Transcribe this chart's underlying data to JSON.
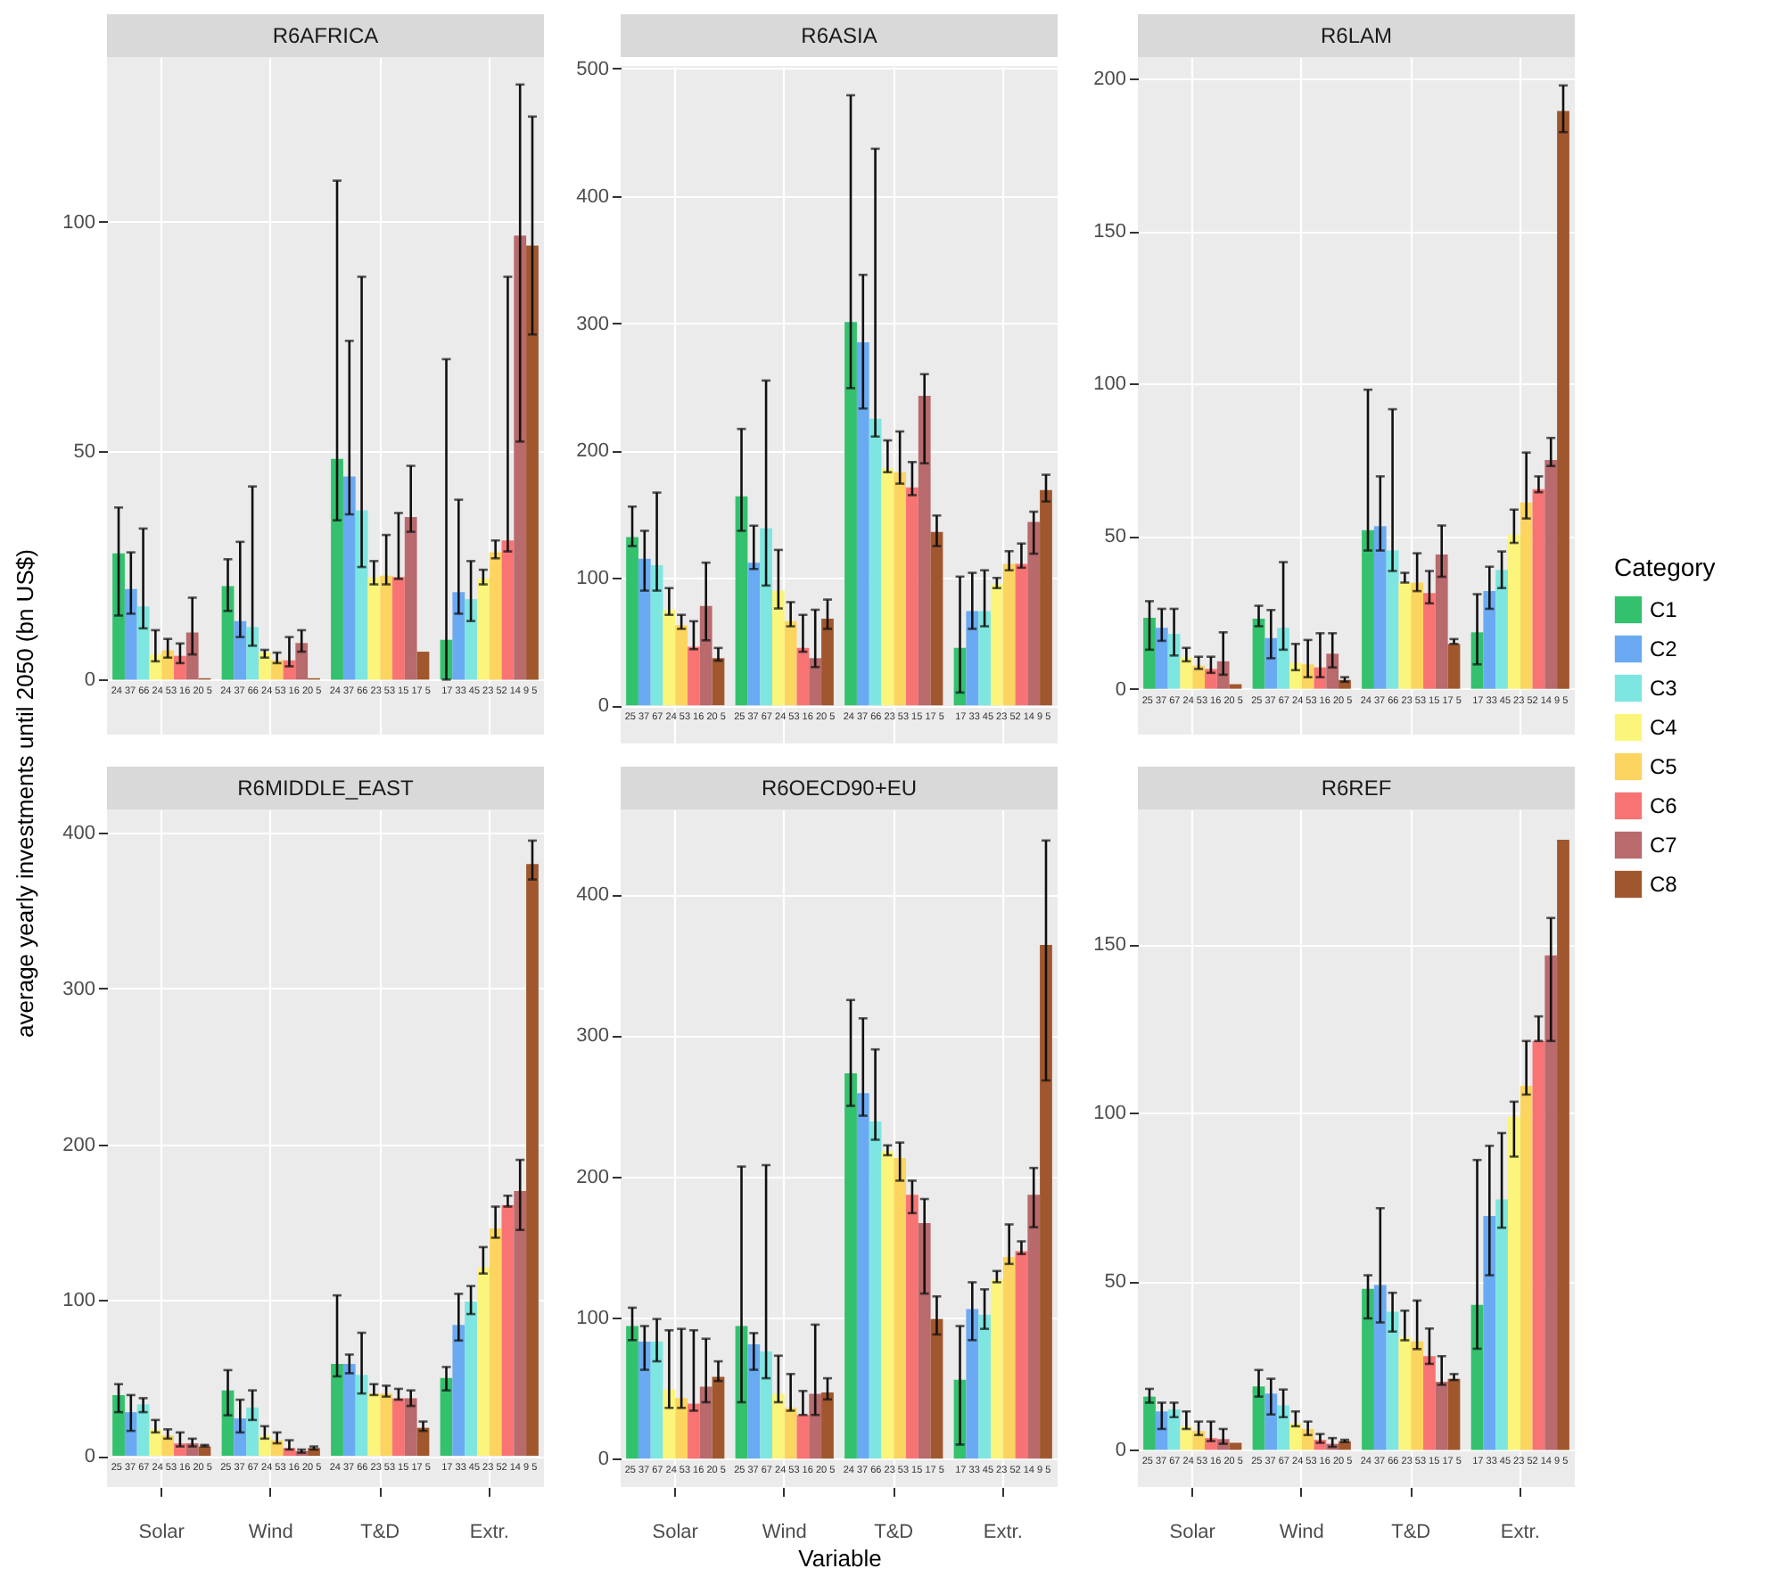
{
  "chart_data": [
    {
      "type": "bar",
      "title": "R6AFRICA",
      "categories": [
        "Solar",
        "Wind",
        "T&D",
        "Extr."
      ],
      "ylim": [
        -12,
        136
      ],
      "yticks": [
        0,
        50,
        100
      ],
      "grid": true,
      "tick_labels": "y",
      "annotations": [
        {
          "text": "24 37 66 24 53 16 20 5",
          "x": "Solar",
          "y": 0
        },
        {
          "text": "24 37 66 24 53 16 20 5",
          "x": "Wind",
          "y": 0
        },
        {
          "text": "24 37 66 23 53 15 17 5",
          "x": "T&D",
          "y": 0
        },
        {
          "text": "17 33 45 23 52 14 9 5",
          "x": "Extr.",
          "y": 0
        }
      ],
      "series": [
        {
          "color": "#33c16e",
          "values": [
            27.6,
            20.4,
            48.2,
            8.7
          ],
          "errors": [
            [
              14,
              37.6
            ],
            [
              15,
              26.3
            ],
            [
              34.8,
              109
            ],
            [
              0,
              70
            ]
          ]
        },
        {
          "color": "#6aaaf2",
          "values": [
            19.8,
            12.8,
            44.4,
            19.1
          ],
          "errors": [
            [
              14.4,
              27.8
            ],
            [
              9.3,
              30.1
            ],
            [
              36.1,
              74
            ],
            [
              14.4,
              39.3
            ]
          ]
        },
        {
          "color": "#7ee6e0",
          "values": [
            16,
            11.5,
            37,
            17.6
          ],
          "errors": [
            [
              11.2,
              33
            ],
            [
              7.4,
              42.2
            ],
            [
              24.6,
              88
            ],
            [
              12.8,
              25.9
            ]
          ]
        },
        {
          "color": "#fbf57c",
          "values": [
            5.5,
            5.9,
            22.3,
            22.1
          ],
          "errors": [
            [
              4,
              10.8
            ],
            [
              4.8,
              6.5
            ],
            [
              20.8,
              25.9
            ],
            [
              20.8,
              24
            ]
          ]
        },
        {
          "color": "#fbd55f",
          "values": [
            6.4,
            4.2,
            22.7,
            27.8
          ],
          "errors": [
            [
              4.8,
              8.9
            ],
            [
              3.6,
              5.9
            ],
            [
              20.8,
              31.6
            ],
            [
              26.5,
              30.4
            ]
          ]
        },
        {
          "color": "#f87474",
          "values": [
            5.2,
            4.2,
            22.4,
            30.4
          ],
          "errors": [
            [
              3.6,
              7.9
            ],
            [
              2.9,
              9.3
            ],
            [
              22,
              36.4
            ],
            [
              28,
              88
            ]
          ]
        },
        {
          "color": "#b86a6c",
          "values": [
            10.3,
            8,
            35.5,
            97
          ],
          "errors": [
            [
              5.5,
              17.9
            ],
            [
              6.1,
              10.8
            ],
            [
              32.3,
              46.7
            ],
            [
              52,
              130
            ]
          ]
        },
        {
          "color": "#a0572e",
          "values": [
            0.3,
            0.3,
            6.1,
            94.8
          ],
          "errors": [
            null,
            null,
            null,
            [
              75.4,
              123
            ]
          ]
        }
      ]
    },
    {
      "type": "bar",
      "title": "R6ASIA",
      "categories": [
        "Solar",
        "Wind",
        "T&D",
        "Extr."
      ],
      "ylim": [
        -30,
        502
      ],
      "yticks": [
        0,
        100,
        200,
        300,
        400,
        500
      ],
      "grid": true,
      "tick_labels": "y",
      "annotations": [
        {
          "text": "25 37 67 24 53 16 20 5",
          "x": "Solar",
          "y": 0
        },
        {
          "text": "25 37 67 24 53 16 20 5",
          "x": "Wind",
          "y": 0
        },
        {
          "text": "24 37 66 23 53 15 17 5",
          "x": "T&D",
          "y": 0
        },
        {
          "text": "17 33 45 23 52 14 9 5",
          "x": "Extr.",
          "y": 0
        }
      ],
      "series": [
        {
          "color": "#33c16e",
          "values": [
            132,
            164,
            301,
            45
          ],
          "errors": [
            [
              125,
              156
            ],
            [
              137,
              217
            ],
            [
              249,
              479
            ],
            [
              10,
              101
            ]
          ]
        },
        {
          "color": "#6aaaf2",
          "values": [
            115,
            112,
            285,
            74
          ],
          "errors": [
            [
              90,
              137
            ],
            [
              107,
              141
            ],
            [
              233,
              338
            ],
            [
              60,
              104
            ]
          ]
        },
        {
          "color": "#7ee6e0",
          "values": [
            110,
            139,
            225,
            74
          ],
          "errors": [
            [
              90,
              167
            ],
            [
              94,
              255
            ],
            [
              211,
              437
            ],
            [
              62,
              106
            ]
          ]
        },
        {
          "color": "#fbf57c",
          "values": [
            75,
            90,
            186,
            95
          ],
          "errors": [
            [
              71,
              92
            ],
            [
              76,
              122
            ],
            [
              183,
              208
            ],
            [
              92,
              100
            ]
          ]
        },
        {
          "color": "#fbd55f",
          "values": [
            63,
            66,
            183,
            111
          ],
          "errors": [
            [
              60,
              71
            ],
            [
              62,
              81
            ],
            [
              174,
              215
            ],
            [
              106,
              121
            ]
          ]
        },
        {
          "color": "#f87474",
          "values": [
            46,
            45,
            171,
            111
          ],
          "errors": [
            [
              44,
              66
            ],
            [
              42,
              71
            ],
            [
              165,
              191
            ],
            [
              108,
              127
            ]
          ]
        },
        {
          "color": "#b86a6c",
          "values": [
            78,
            37,
            243,
            144
          ],
          "errors": [
            [
              51,
              112
            ],
            [
              30,
              75
            ],
            [
              190,
              260
            ],
            [
              119,
              152
            ]
          ]
        },
        {
          "color": "#a0572e",
          "values": [
            37,
            68,
            136,
            169
          ],
          "errors": [
            [
              35,
              45
            ],
            [
              60,
              83
            ],
            [
              125,
              149
            ],
            [
              160,
              181
            ]
          ]
        }
      ]
    },
    {
      "type": "bar",
      "title": "R6LAM",
      "categories": [
        "Solar",
        "Wind",
        "T&D",
        "Extr."
      ],
      "ylim": [
        -15,
        207
      ],
      "yticks": [
        0,
        50,
        100,
        150,
        200
      ],
      "grid": true,
      "tick_labels": "y",
      "legend": "right",
      "legend_title": "Category",
      "annotations": [
        {
          "text": "25 37 67 24 53 16 20 5",
          "x": "Solar",
          "y": 0
        },
        {
          "text": "25 37 67 24 53 16 20 5",
          "x": "Wind",
          "y": 0
        },
        {
          "text": "24 37 66 23 53 15 17 5",
          "x": "T&D",
          "y": 0
        },
        {
          "text": "17 33 45 23 52 14 9 5",
          "x": "Extr.",
          "y": 0
        }
      ],
      "series": [
        {
          "name": "C1",
          "color": "#33c16e",
          "values": [
            23.3,
            23,
            52,
            18.5
          ],
          "errors": [
            [
              12.8,
              28.7
            ],
            [
              20.5,
              27.2
            ],
            [
              45.3,
              98
            ],
            [
              8,
              31
            ]
          ]
        },
        {
          "name": "C2",
          "color": "#6aaaf2",
          "values": [
            20,
            16.6,
            53.3,
            32
          ],
          "errors": [
            [
              15.7,
              26.2
            ],
            [
              10,
              25.8
            ],
            [
              45.3,
              69.6
            ],
            [
              26.2,
              40
            ]
          ]
        },
        {
          "name": "C3",
          "color": "#7ee6e0",
          "values": [
            18,
            20,
            45.3,
            39
          ],
          "errors": [
            [
              10.9,
              26.2
            ],
            [
              12.8,
              41.5
            ],
            [
              38.6,
              91.6
            ],
            [
              33,
              45
            ]
          ]
        },
        {
          "name": "C4",
          "color": "#fbf57c",
          "values": [
            10.3,
            8.6,
            34.8,
            50.5
          ],
          "errors": [
            [
              9,
              13.4
            ],
            [
              6.1,
              14.7
            ],
            [
              34.8,
              38
            ],
            [
              47.8,
              58.7
            ]
          ]
        },
        {
          "name": "C5",
          "color": "#fbd55f",
          "values": [
            7.6,
            8,
            34.8,
            61
          ],
          "errors": [
            [
              6.5,
              10.5
            ],
            [
              3.8,
              16
            ],
            [
              32,
              44.4
            ],
            [
              55.8,
              77.4
            ]
          ]
        },
        {
          "name": "C6",
          "color": "#f87474",
          "values": [
            6.5,
            7,
            31.4,
            65.4
          ],
          "errors": [
            [
              5.2,
              10.5
            ],
            [
              3.8,
              18.2
            ],
            [
              28,
              38.6
            ],
            [
              64.4,
              69.6
            ]
          ]
        },
        {
          "name": "C7",
          "color": "#b86a6c",
          "values": [
            9,
            11.5,
            44,
            75
          ],
          "errors": [
            [
              4.6,
              18.5
            ],
            [
              7,
              18.2
            ],
            [
              36.7,
              53.5
            ],
            [
              73,
              82.2
            ]
          ]
        },
        {
          "name": "C8",
          "color": "#a0572e",
          "values": [
            1.5,
            2.9,
            14.7,
            189.3
          ],
          "errors": [
            null,
            [
              2.3,
              3.8
            ],
            [
              14.7,
              16.3
            ],
            [
              182.4,
              197.7
            ]
          ]
        }
      ]
    },
    {
      "type": "bar",
      "title": "R6MIDDLE_EAST",
      "ylabel": "average yearly investments until 2050 (bn US$)",
      "categories": [
        "Solar",
        "Wind",
        "T&D",
        "Extr."
      ],
      "ylim": [
        -20,
        415
      ],
      "yticks": [
        0,
        100,
        200,
        300,
        400
      ],
      "grid": true,
      "annotations": [
        {
          "text": "25 37 67 24 53 16 20 5",
          "x": "Solar",
          "y": 0
        },
        {
          "text": "25 37 67 24 53 16 20 5",
          "x": "Wind",
          "y": 0
        },
        {
          "text": "24 37 66 23 53 15 17 5",
          "x": "T&D",
          "y": 0
        },
        {
          "text": "17 33 45 23 52 14 9 5",
          "x": "Extr.",
          "y": 0
        }
      ],
      "series": [
        {
          "color": "#33c16e",
          "values": [
            39,
            42,
            59,
            50
          ],
          "errors": [
            [
              28,
              46
            ],
            [
              26,
              55
            ],
            [
              51,
              103
            ],
            [
              42,
              57
            ]
          ]
        },
        {
          "color": "#6aaaf2",
          "values": [
            28,
            24,
            59,
            84
          ],
          "errors": [
            [
              16,
              39
            ],
            [
              15,
              36
            ],
            [
              53,
              65
            ],
            [
              74,
              104
            ]
          ]
        },
        {
          "color": "#7ee6e0",
          "values": [
            33,
            31,
            52,
            99
          ],
          "errors": [
            [
              28,
              37
            ],
            [
              23,
              42
            ],
            [
              40,
              79
            ],
            [
              91,
              109
            ]
          ]
        },
        {
          "color": "#fbf57c",
          "values": [
            17,
            13,
            40,
            121
          ],
          "errors": [
            [
              15,
              23
            ],
            [
              11,
              19
            ],
            [
              39,
              46
            ],
            [
              117,
              134
            ]
          ]
        },
        {
          "color": "#fbd55f",
          "values": [
            13,
            10,
            40,
            146
          ],
          "errors": [
            [
              11,
              17
            ],
            [
              8,
              15
            ],
            [
              38,
              45
            ],
            [
              140,
              160
            ]
          ]
        },
        {
          "color": "#f87474",
          "values": [
            8,
            5,
            37,
            161
          ],
          "errors": [
            [
              6,
              15
            ],
            [
              4,
              10
            ],
            [
              36,
              43
            ],
            [
              160,
              167
            ]
          ]
        },
        {
          "color": "#b86a6c",
          "values": [
            8,
            3,
            37,
            170
          ],
          "errors": [
            [
              6,
              11
            ],
            [
              2,
              4
            ],
            [
              32,
              42
            ],
            [
              145,
              190
            ]
          ]
        },
        {
          "color": "#a0572e",
          "values": [
            6,
            5,
            18,
            380
          ],
          "errors": [
            [
              6,
              7
            ],
            [
              4,
              6
            ],
            [
              16,
              22
            ],
            [
              370,
              395
            ]
          ]
        }
      ]
    },
    {
      "type": "bar",
      "title": "R6OECD90+EU",
      "xlabel": "Variable",
      "categories": [
        "Solar",
        "Wind",
        "T&D",
        "Extr."
      ],
      "ylim": [
        -20,
        460
      ],
      "yticks": [
        0,
        100,
        200,
        300,
        400
      ],
      "grid": true,
      "annotations": [
        {
          "text": "25 37 67 24 53 16 20 5",
          "x": "Solar",
          "y": 0
        },
        {
          "text": "25 37 67 24 53 16 20 5",
          "x": "Wind",
          "y": 0
        },
        {
          "text": "24 37 66 23 53 15 17 5",
          "x": "T&D",
          "y": 0
        },
        {
          "text": "17 33 45 23 52 14 9 5",
          "x": "Extr.",
          "y": 0
        }
      ],
      "series": [
        {
          "color": "#33c16e",
          "values": [
            94,
            94,
            273,
            56
          ],
          "errors": [
            [
              84,
              107
            ],
            [
              40,
              207
            ],
            [
              250,
              325
            ],
            [
              10,
              94
            ]
          ]
        },
        {
          "color": "#6aaaf2",
          "values": [
            83,
            81,
            259,
            106
          ],
          "errors": [
            [
              63,
              94
            ],
            [
              63,
              89
            ],
            [
              243,
              312
            ],
            [
              84,
              125
            ]
          ]
        },
        {
          "color": "#7ee6e0",
          "values": [
            83,
            76,
            239,
            102
          ],
          "errors": [
            [
              69,
              99
            ],
            [
              57,
              208
            ],
            [
              226,
              290
            ],
            [
              92,
              120
            ]
          ]
        },
        {
          "color": "#fbf57c",
          "values": [
            49,
            46,
            218,
            127
          ],
          "errors": [
            [
              36,
              91
            ],
            [
              40,
              73
            ],
            [
              215,
              222
            ],
            [
              125,
              133
            ]
          ]
        },
        {
          "color": "#fbd55f",
          "values": [
            43,
            36,
            213,
            143
          ],
          "errors": [
            [
              36,
              92
            ],
            [
              34,
              60
            ],
            [
              197,
              224
            ],
            [
              138,
              166
            ]
          ]
        },
        {
          "color": "#f87474",
          "values": [
            39,
            31,
            187,
            147
          ],
          "errors": [
            [
              34,
              91
            ],
            [
              31,
              48
            ],
            [
              174,
              197
            ],
            [
              145,
              154
            ]
          ]
        },
        {
          "color": "#b86a6c",
          "values": [
            51,
            46,
            167,
            187
          ],
          "errors": [
            [
              40,
              85
            ],
            [
              31,
              95
            ],
            [
              117,
              184
            ],
            [
              164,
              206
            ]
          ]
        },
        {
          "color": "#a0572e",
          "values": [
            58,
            47,
            99,
            364
          ],
          "errors": [
            [
              55,
              69
            ],
            [
              42,
              57
            ],
            [
              88,
              115
            ],
            [
              268,
              438
            ]
          ]
        }
      ]
    },
    {
      "type": "bar",
      "title": "R6REF",
      "categories": [
        "Solar",
        "Wind",
        "T&D",
        "Extr."
      ],
      "ylim": [
        -11,
        190
      ],
      "yticks": [
        0,
        50,
        100,
        150
      ],
      "grid": true,
      "annotations": [
        {
          "text": "25 37 67 24 53 16 20 5",
          "x": "Solar",
          "y": 0
        },
        {
          "text": "25 37 67 24 53 16 20 5",
          "x": "Wind",
          "y": 0
        },
        {
          "text": "24 37 66 23 53 15 17 5",
          "x": "T&D",
          "y": 0
        },
        {
          "text": "17 33 45 23 52 14 9 5",
          "x": "Extr.",
          "y": 0
        }
      ],
      "series": [
        {
          "color": "#33c16e",
          "values": [
            15.8,
            18.8,
            47.8,
            43
          ],
          "errors": [
            [
              14,
              18.1
            ],
            [
              15.8,
              23.7
            ],
            [
              39,
              51.8
            ],
            [
              30,
              86
            ]
          ]
        },
        {
          "color": "#6aaaf2",
          "values": [
            11.4,
            16.7,
            48.9,
            69.4
          ],
          "errors": [
            [
              6.2,
              14
            ],
            [
              10.5,
              21.1
            ],
            [
              37.8,
              71.7
            ],
            [
              51.8,
              90.2
            ]
          ]
        },
        {
          "color": "#7ee6e0",
          "values": [
            12,
            13.2,
            41,
            74.3
          ],
          "errors": [
            [
              9.7,
              14
            ],
            [
              9.7,
              17.9
            ],
            [
              35.1,
              46.6
            ],
            [
              65.9,
              94
            ]
          ]
        },
        {
          "color": "#fbf57c",
          "values": [
            7,
            7.9,
            33.4,
            98.8
          ],
          "errors": [
            [
              6.2,
              11.4
            ],
            [
              7,
              11.4
            ],
            [
              32.5,
              41.3
            ],
            [
              87,
              103.3
            ]
          ]
        },
        {
          "color": "#fbd55f",
          "values": [
            5.6,
            6.2,
            32.2,
            108
          ],
          "errors": [
            [
              4.4,
              8.4
            ],
            [
              4.4,
              8.4
            ],
            [
              29.9,
              44.3
            ],
            [
              105.4,
              121.3
            ]
          ]
        },
        {
          "color": "#f87474",
          "values": [
            3.5,
            3,
            27.8,
            121.3
          ],
          "errors": [
            [
              2.6,
              8.4
            ],
            [
              2.1,
              4.7
            ],
            [
              25.5,
              36
            ],
            [
              121.3,
              128.6
            ]
          ]
        },
        {
          "color": "#b86a6c",
          "values": [
            3.2,
            1.8,
            20.2,
            146.7
          ],
          "errors": [
            [
              1.8,
              6.2
            ],
            [
              0.9,
              3.5
            ],
            [
              19.3,
              27.8
            ],
            [
              121.3,
              157.8
            ]
          ]
        },
        {
          "color": "#a0572e",
          "values": [
            2.1,
            2.6,
            21.1,
            181
          ],
          "errors": [
            null,
            [
              2.3,
              3
            ],
            [
              20.7,
              22.5
            ],
            null
          ]
        }
      ]
    }
  ]
}
